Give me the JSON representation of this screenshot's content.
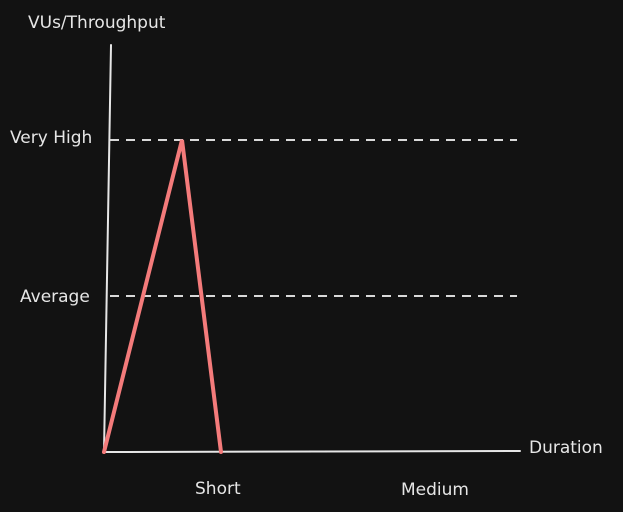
{
  "chart_data": {
    "type": "line",
    "title": "",
    "ylabel": "VUs/Throughput",
    "xlabel": "Duration",
    "y_ticks": [
      {
        "label": "Average",
        "value": 1
      },
      {
        "label": "Very High",
        "value": 2
      }
    ],
    "x_ticks": [
      {
        "label": "Short",
        "value": 1
      },
      {
        "label": "Medium",
        "value": 2
      }
    ],
    "xlim": [
      0,
      2.7
    ],
    "ylim": [
      0,
      2.65
    ],
    "reference_lines": [
      {
        "label": "Very High",
        "y": 2,
        "style": "dashed"
      },
      {
        "label": "Average",
        "y": 1,
        "style": "dashed"
      }
    ],
    "series": [
      {
        "color": "#f47b7b",
        "points": [
          {
            "x": 0,
            "y": 0
          },
          {
            "x": 0.5,
            "y": 2
          },
          {
            "x": 0.75,
            "y": 0
          }
        ]
      }
    ],
    "grid": false,
    "legend": "none"
  },
  "colors": {
    "background": "#121212",
    "axis": "#e6e6e6",
    "dashed": "#d9d9d9",
    "series": "#f47b7b"
  }
}
